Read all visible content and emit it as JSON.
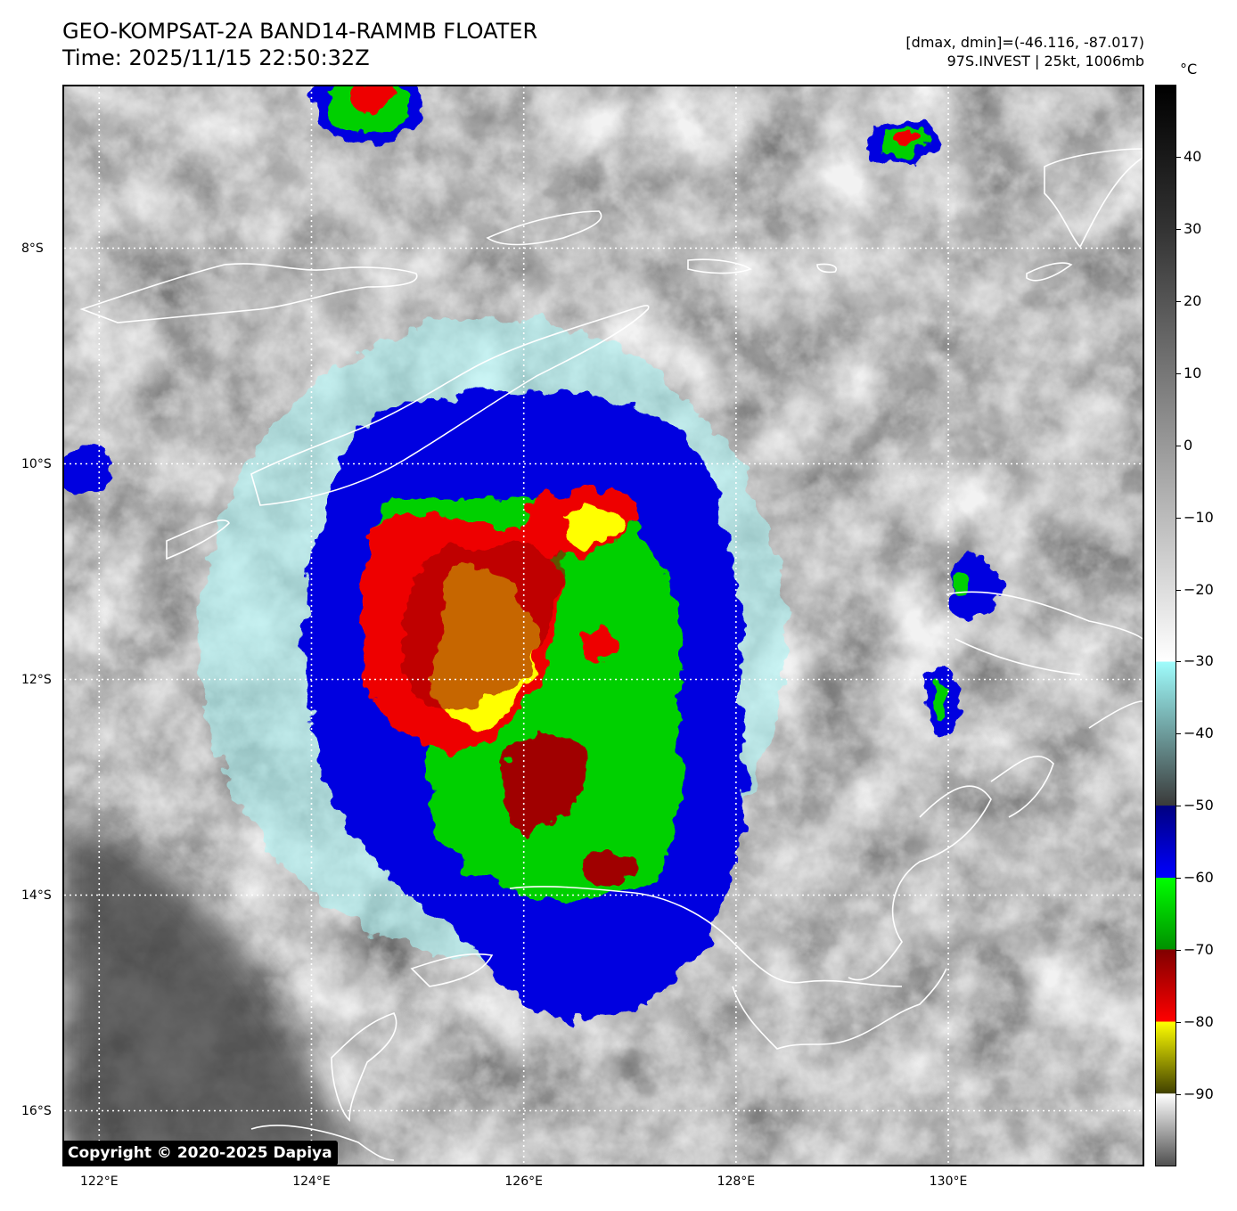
{
  "header": {
    "title_line1": "GEO-KOMPSAT-2A BAND14-RAMMB FLOATER",
    "title_line2": "Time: 2025/11/15 22:50:32Z",
    "info_line1": "[dmax, dmin]=(-46.116, -87.017)",
    "info_line2": "97S.INVEST | 25kt, 1006mb"
  },
  "map": {
    "lon_range": [
      121.67,
      131.83
    ],
    "lat_range": [
      -16.5,
      -6.5
    ],
    "lat_labels": [
      {
        "value": -8,
        "label": "8°S"
      },
      {
        "value": -10,
        "label": "10°S"
      },
      {
        "value": -12,
        "label": "12°S"
      },
      {
        "value": -14,
        "label": "14°S"
      },
      {
        "value": -16,
        "label": "16°S"
      }
    ],
    "lon_labels": [
      {
        "value": 122,
        "label": "122°E"
      },
      {
        "value": 124,
        "label": "124°E"
      },
      {
        "value": 126,
        "label": "126°E"
      },
      {
        "value": 128,
        "label": "128°E"
      },
      {
        "value": 130,
        "label": "130°E"
      }
    ],
    "gridlines": "dotted-white",
    "copyright": "Copyright © 2020-2025 Dapiya"
  },
  "colorbar": {
    "unit": "°C",
    "range": [
      -100,
      50
    ],
    "ticks": [
      {
        "value": 40,
        "label": "40"
      },
      {
        "value": 30,
        "label": "30"
      },
      {
        "value": 20,
        "label": "20"
      },
      {
        "value": 10,
        "label": "10"
      },
      {
        "value": 0,
        "label": "0"
      },
      {
        "value": -10,
        "label": "−10"
      },
      {
        "value": -20,
        "label": "−20"
      },
      {
        "value": -30,
        "label": "−30"
      },
      {
        "value": -40,
        "label": "−40"
      },
      {
        "value": -50,
        "label": "−50"
      },
      {
        "value": -60,
        "label": "−60"
      },
      {
        "value": -70,
        "label": "−70"
      },
      {
        "value": -80,
        "label": "−80"
      },
      {
        "value": -90,
        "label": "−90"
      }
    ],
    "stops": [
      {
        "value": 50,
        "color": "#000000"
      },
      {
        "value": 30,
        "color": "#333333"
      },
      {
        "value": -30,
        "color": "#ffffff"
      },
      {
        "value": -30.01,
        "color": "#9ffcfc"
      },
      {
        "value": -50,
        "color": "#3a3a3a"
      },
      {
        "value": -50.01,
        "color": "#000080"
      },
      {
        "value": -60,
        "color": "#0000ff"
      },
      {
        "value": -60.01,
        "color": "#00ff00"
      },
      {
        "value": -70,
        "color": "#009000"
      },
      {
        "value": -70.01,
        "color": "#800000"
      },
      {
        "value": -80,
        "color": "#ff0000"
      },
      {
        "value": -80.01,
        "color": "#ffff00"
      },
      {
        "value": -90,
        "color": "#404000"
      },
      {
        "value": -90.01,
        "color": "#ffffff"
      },
      {
        "value": -100,
        "color": "#505050"
      }
    ]
  },
  "colors": {
    "very_cold_yellow": "#ffff00",
    "red": "#ff0000",
    "dark_red": "#a00000",
    "green": "#00d000",
    "blue": "#0000e0",
    "cyan": "#a8f5f5",
    "coastline": "#ffffff"
  }
}
